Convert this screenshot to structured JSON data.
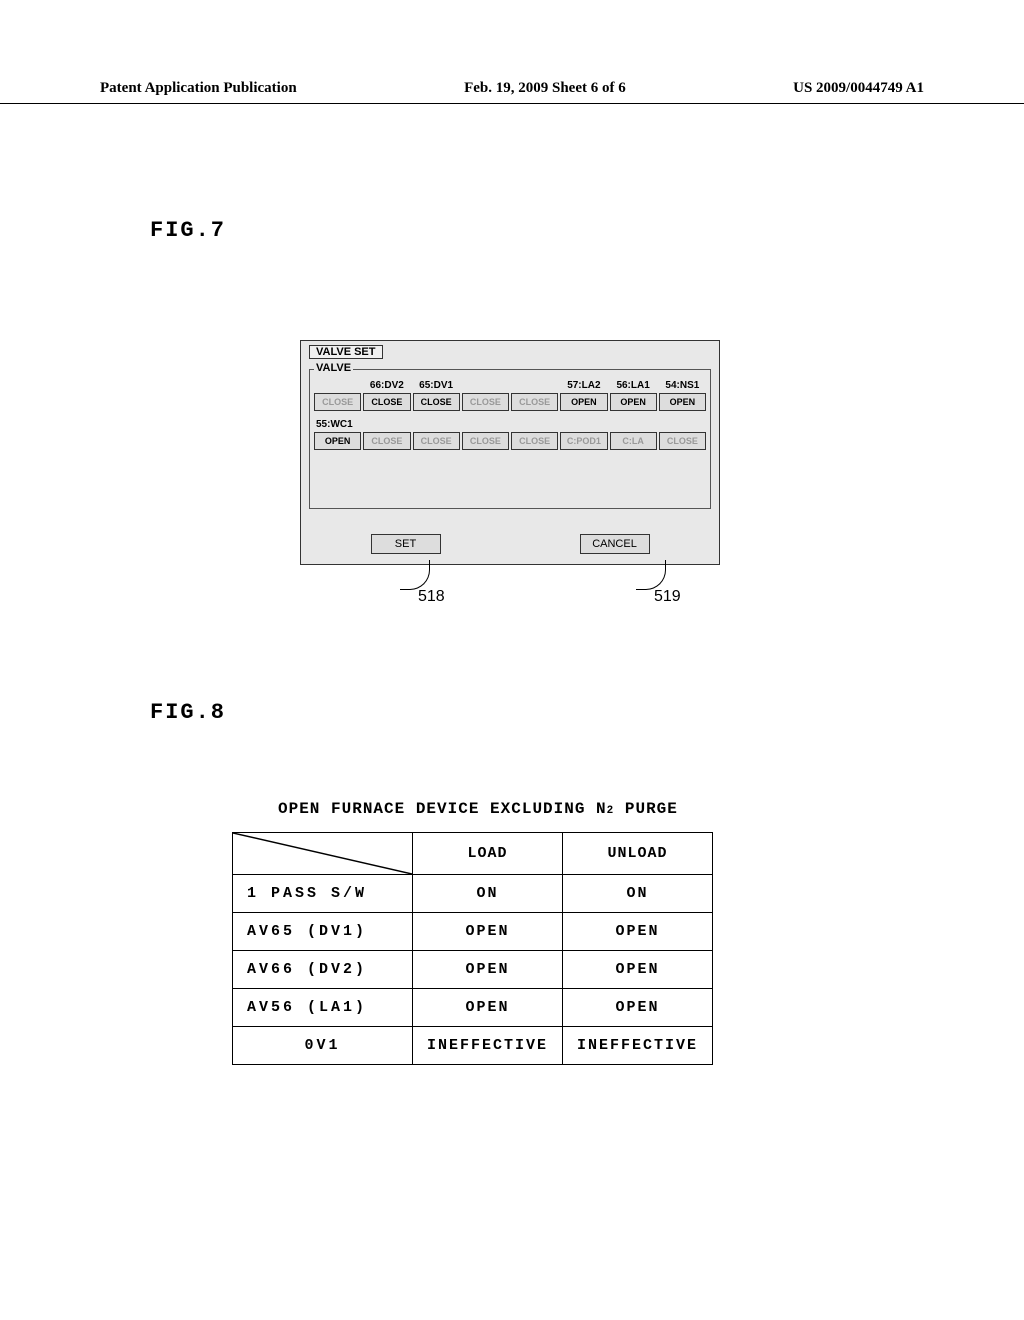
{
  "header": {
    "left": "Patent Application Publication",
    "center": "Feb. 19, 2009  Sheet 6 of 6",
    "right": "US 2009/0044749 A1"
  },
  "fig7": {
    "label": "FIG.7",
    "dialog_title": "VALVE SET",
    "group_label": "VALVE",
    "row1_labels": [
      "",
      "66:DV2",
      "65:DV1",
      "",
      "",
      "57:LA2",
      "56:LA1",
      "54:NS1"
    ],
    "row1_buttons": [
      "CLOSE",
      "CLOSE",
      "CLOSE",
      "CLOSE",
      "CLOSE",
      "OPEN",
      "OPEN",
      "OPEN"
    ],
    "row1_faded": [
      true,
      false,
      false,
      true,
      true,
      false,
      false,
      false
    ],
    "row2_prefix": "55:WC1",
    "row2_buttons": [
      "OPEN",
      "CLOSE",
      "CLOSE",
      "CLOSE",
      "CLOSE",
      "C:POD1",
      "C:LA",
      "CLOSE"
    ],
    "row2_faded": [
      false,
      true,
      true,
      true,
      true,
      true,
      true,
      true
    ],
    "set_label": "SET",
    "cancel_label": "CANCEL",
    "callout_518": "518",
    "callout_519": "519"
  },
  "fig8": {
    "label": "FIG.8",
    "title_pre": "OPEN FURNACE DEVICE EXCLUDING N",
    "title_sub": "2",
    "title_post": "PURGE",
    "columns": [
      "LOAD",
      "UNLOAD"
    ],
    "rows": [
      {
        "name": "1 PASS S/W",
        "load": "ON",
        "unload": "ON"
      },
      {
        "name": "AV65 (DV1)",
        "load": "OPEN",
        "unload": "OPEN"
      },
      {
        "name": "AV66 (DV2)",
        "load": "OPEN",
        "unload": "OPEN"
      },
      {
        "name": "AV56 (LA1)",
        "load": "OPEN",
        "unload": "OPEN"
      },
      {
        "name": "0V1",
        "load": "INEFFECTIVE",
        "unload": "INEFFECTIVE"
      }
    ]
  }
}
